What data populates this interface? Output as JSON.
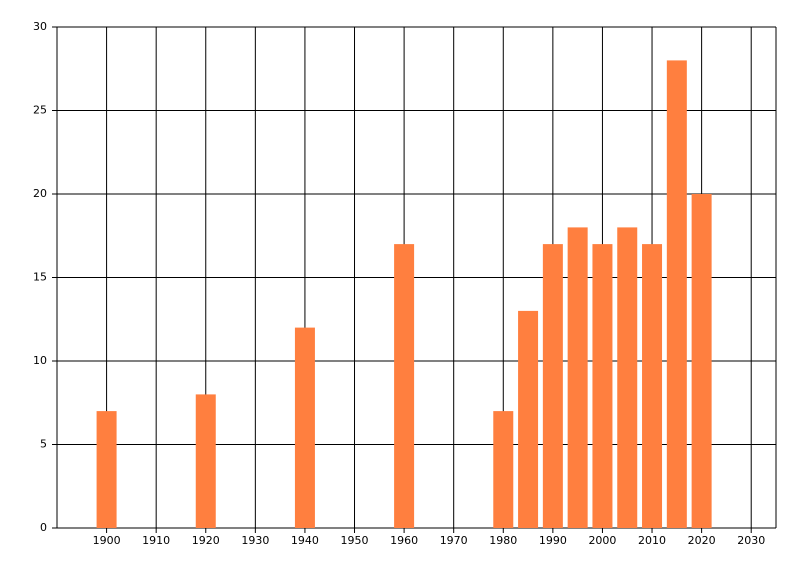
{
  "chart_data": {
    "type": "bar",
    "x": [
      1900,
      1920,
      1940,
      1960,
      1980,
      1985,
      1990,
      1995,
      2000,
      2005,
      2010,
      2015,
      2020
    ],
    "values": [
      7,
      8,
      12,
      17,
      7,
      13,
      17,
      18,
      17,
      18,
      17,
      28,
      20
    ],
    "color": "#ff7f3f",
    "xlim": [
      1890,
      2035
    ],
    "xticks": [
      1900,
      1910,
      1920,
      1930,
      1940,
      1950,
      1960,
      1970,
      1980,
      1990,
      2000,
      2010,
      2020,
      2030
    ],
    "ylim": [
      0,
      30
    ],
    "yticks": [
      0,
      5,
      10,
      15,
      20,
      25,
      30
    ],
    "grid": true
  }
}
